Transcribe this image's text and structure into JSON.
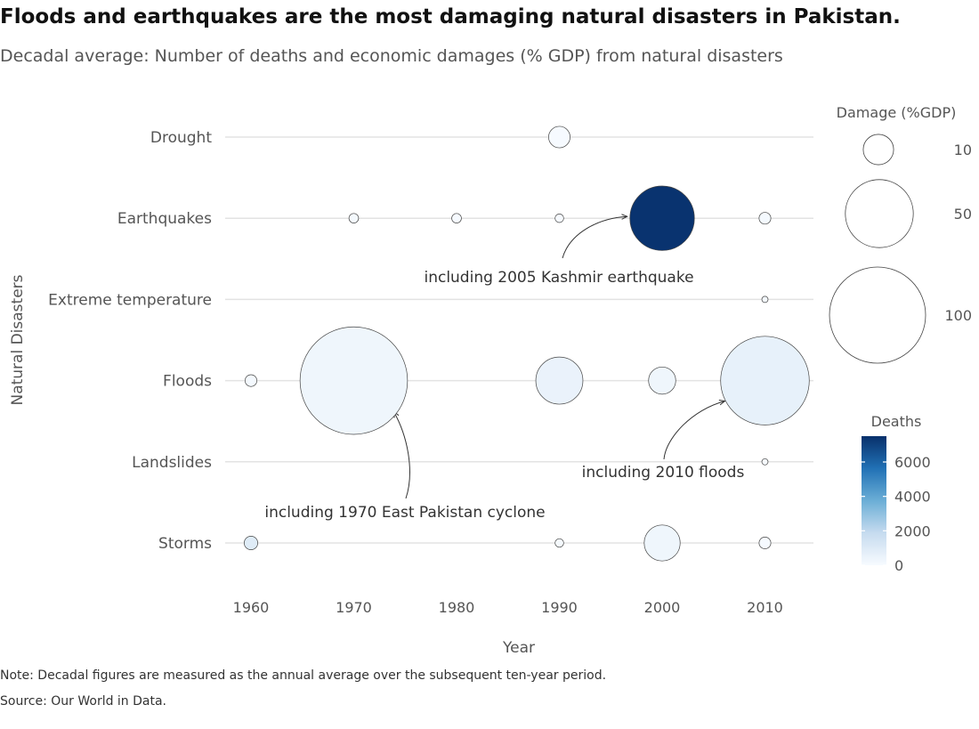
{
  "title": "Floods and earthquakes are the most damaging natural disasters in Pakistan.",
  "subtitle": "Decadal average: Number of deaths and economic damages (% GDP) from natural disasters",
  "note": "Note: Decadal figures are measured as the annual average over the subsequent ten-year period.",
  "source": "Source: Our World in Data.",
  "chart_data": {
    "type": "scatter",
    "xlabel": "Year",
    "ylabel": "Natural Disasters",
    "x_ticks": [
      "1960",
      "1970",
      "1980",
      "1990",
      "2000",
      "2010"
    ],
    "categories": [
      "Drought",
      "Earthquakes",
      "Extreme temperature",
      "Floods",
      "Landslides",
      "Storms"
    ],
    "size_legend": {
      "title": "Damage (%GDP)",
      "entries": [
        {
          "label": "10",
          "value": 10
        },
        {
          "label": "50",
          "value": 50
        },
        {
          "label": "100",
          "value": 100
        }
      ]
    },
    "color_legend": {
      "title": "Deaths",
      "min": 0,
      "max": 7500,
      "ticks": [
        {
          "label": "0",
          "value": 0
        },
        {
          "label": "2000",
          "value": 2000
        },
        {
          "label": "4000",
          "value": 4000
        },
        {
          "label": "6000",
          "value": 6000
        }
      ],
      "colors": [
        "#f7fbff",
        "#c6dbef",
        "#6baed6",
        "#2171b5",
        "#08306b"
      ]
    },
    "points": [
      {
        "category": "Drought",
        "year": 1990,
        "damage": 5,
        "deaths": 50
      },
      {
        "category": "Earthquakes",
        "year": 1970,
        "damage": 1,
        "deaths": 100
      },
      {
        "category": "Earthquakes",
        "year": 1980,
        "damage": 1,
        "deaths": 50
      },
      {
        "category": "Earthquakes",
        "year": 1990,
        "damage": 0.8,
        "deaths": 50
      },
      {
        "category": "Earthquakes",
        "year": 2000,
        "damage": 45,
        "deaths": 7400
      },
      {
        "category": "Earthquakes",
        "year": 2010,
        "damage": 1.5,
        "deaths": 100
      },
      {
        "category": "Extreme temperature",
        "year": 2010,
        "damage": 0.3,
        "deaths": 150
      },
      {
        "category": "Floods",
        "year": 1960,
        "damage": 1.5,
        "deaths": 100
      },
      {
        "category": "Floods",
        "year": 1970,
        "damage": 125,
        "deaths": 300
      },
      {
        "category": "Floods",
        "year": 1990,
        "damage": 24,
        "deaths": 500
      },
      {
        "category": "Floods",
        "year": 2000,
        "damage": 8,
        "deaths": 300
      },
      {
        "category": "Floods",
        "year": 2010,
        "damage": 85,
        "deaths": 600
      },
      {
        "category": "Landslides",
        "year": 2010,
        "damage": 0.3,
        "deaths": 20
      },
      {
        "category": "Storms",
        "year": 1960,
        "damage": 2,
        "deaths": 900
      },
      {
        "category": "Storms",
        "year": 1990,
        "damage": 0.8,
        "deaths": 80
      },
      {
        "category": "Storms",
        "year": 2000,
        "damage": 14,
        "deaths": 300
      },
      {
        "category": "Storms",
        "year": 2010,
        "damage": 1.5,
        "deaths": 50
      }
    ],
    "annotations": [
      {
        "text": "including 2005 Kashmir earthquake",
        "category": "Earthquakes",
        "year": 2000
      },
      {
        "text": "including 1970 East Pakistan cyclone",
        "category": "Floods",
        "year": 1970
      },
      {
        "text": "including 2010 floods",
        "category": "Floods",
        "year": 2010
      }
    ]
  }
}
